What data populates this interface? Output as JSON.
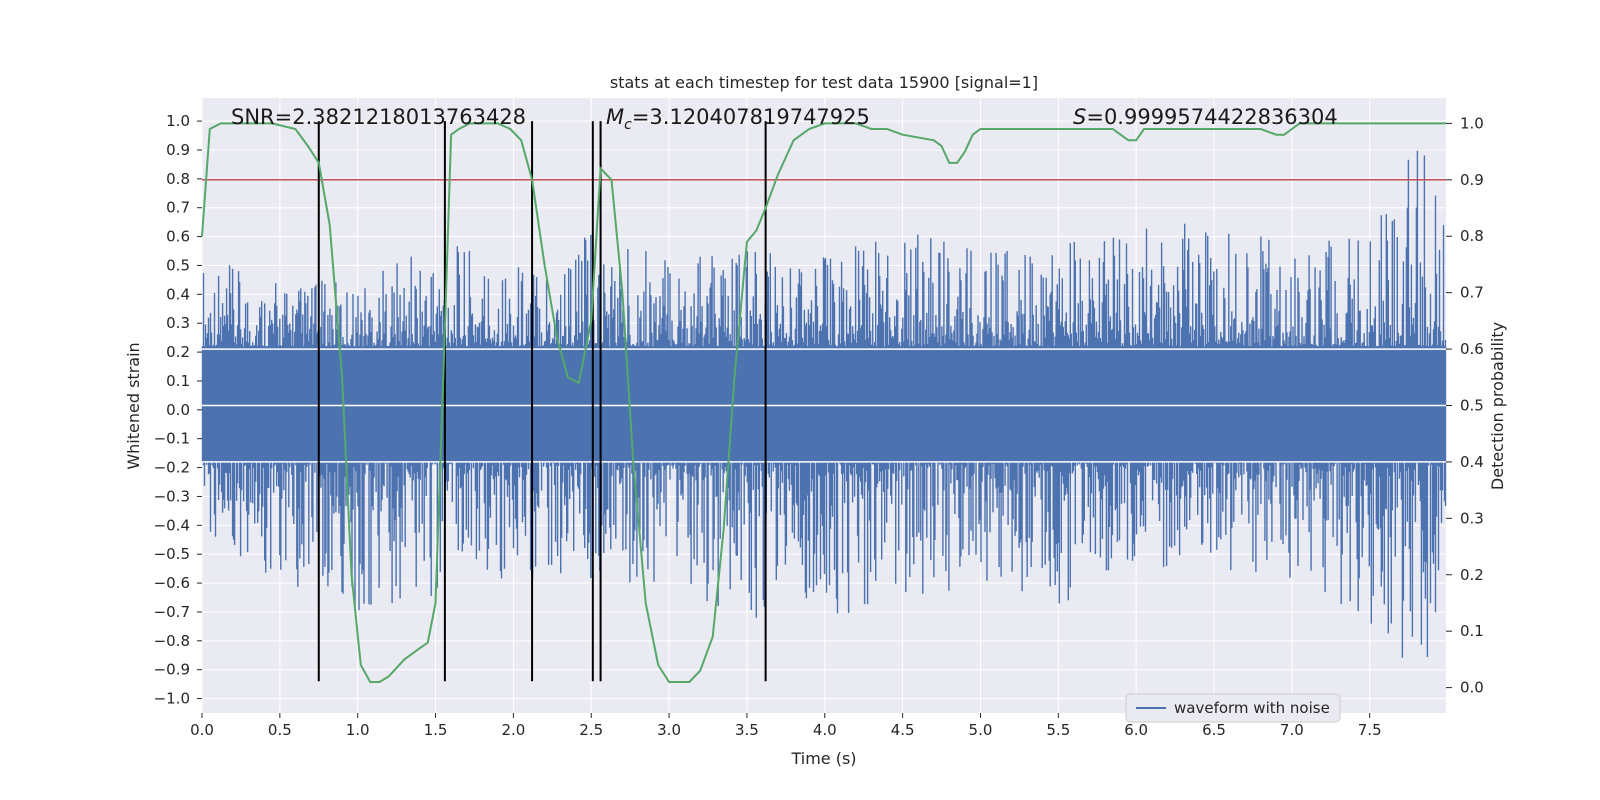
{
  "chart_data": {
    "type": "line",
    "title": "stats at each timestep for test data 15900 [signal=1]",
    "xlabel": "Time (s)",
    "ylabel": "Whitened strain",
    "ylabel_right": "Detection probability",
    "xlim": [
      0.0,
      7.99
    ],
    "ylim": [
      -1.05,
      1.08
    ],
    "ylim_right": [
      -0.045,
      1.045
    ],
    "x_ticks": [
      "0.0",
      "0.5",
      "1.0",
      "1.5",
      "2.0",
      "2.5",
      "3.0",
      "3.5",
      "4.0",
      "4.5",
      "5.0",
      "5.5",
      "6.0",
      "6.5",
      "7.0",
      "7.5"
    ],
    "y_ticks": [
      "1.0",
      "0.9",
      "0.8",
      "0.7",
      "0.6",
      "0.5",
      "0.4",
      "0.3",
      "0.2",
      "0.1",
      "0.0",
      "−0.1",
      "−0.2",
      "−0.3",
      "−0.4",
      "−0.5",
      "−0.6",
      "−0.7",
      "−0.8",
      "−0.9",
      "−1.0"
    ],
    "y_ticks_right": [
      "1.0",
      "0.9",
      "0.8",
      "0.7",
      "0.6",
      "0.5",
      "0.4",
      "0.3",
      "0.2",
      "0.1",
      "0.0"
    ],
    "annotations": {
      "snr": "SNR=2.3821218013763428",
      "mc_symbol": "M",
      "mc_sub": "c",
      "mc_value": "=3.120407819747925",
      "s_symbol": "S",
      "s_value": "=0.9999574422836304"
    },
    "threshold": {
      "axis": "right",
      "value": 0.9,
      "color": "#c44e52"
    },
    "vertical_lines_x": [
      0.75,
      1.56,
      2.12,
      2.51,
      2.56,
      3.62
    ],
    "vertical_lines_range": [
      -0.94,
      1.0
    ],
    "noise_band_right": [
      0.4,
      0.6
    ],
    "waveform_envelope": {
      "name": "waveform with noise",
      "color": "#4c72b0",
      "x": [
        0.0,
        0.5,
        1.0,
        1.5,
        2.0,
        2.5,
        3.0,
        3.5,
        4.0,
        4.5,
        5.0,
        5.5,
        6.0,
        6.5,
        7.0,
        7.5,
        7.85,
        7.99
      ],
      "ymax": [
        0.53,
        0.45,
        0.45,
        0.6,
        0.52,
        0.63,
        0.55,
        0.55,
        0.55,
        0.68,
        0.55,
        0.58,
        0.62,
        0.68,
        0.58,
        0.6,
        1.0,
        0.6
      ],
      "ymin": [
        -0.42,
        -0.6,
        -0.7,
        -0.65,
        -0.6,
        -0.62,
        -0.62,
        -0.73,
        -0.73,
        -0.65,
        -0.62,
        -0.69,
        -0.55,
        -0.55,
        -0.6,
        -0.75,
        -0.94,
        -0.55
      ]
    },
    "detection_probability": {
      "color": "#55a868",
      "x": [
        0.0,
        0.05,
        0.12,
        0.3,
        0.45,
        0.6,
        0.68,
        0.75,
        0.82,
        0.9,
        0.96,
        1.02,
        1.08,
        1.14,
        1.2,
        1.3,
        1.4,
        1.45,
        1.5,
        1.55,
        1.6,
        1.65,
        1.72,
        1.8,
        1.9,
        1.98,
        2.05,
        2.12,
        2.2,
        2.28,
        2.35,
        2.42,
        2.5,
        2.56,
        2.63,
        2.7,
        2.77,
        2.85,
        2.93,
        3.0,
        3.07,
        3.13,
        3.2,
        3.28,
        3.35,
        3.42,
        3.5,
        3.56,
        3.62,
        3.7,
        3.8,
        3.9,
        4.0,
        4.2,
        4.3,
        4.4,
        4.5,
        4.7,
        4.75,
        4.8,
        4.85,
        4.9,
        4.95,
        5.0,
        5.1,
        5.2,
        5.3,
        5.5,
        5.7,
        5.85,
        5.9,
        5.95,
        6.0,
        6.05,
        6.1,
        6.2,
        6.3,
        6.4,
        6.5,
        6.6,
        6.7,
        6.8,
        6.9,
        6.95,
        7.0,
        7.05,
        7.1,
        7.5,
        7.99
      ],
      "y": [
        0.8,
        0.99,
        1.0,
        1.0,
        1.0,
        0.99,
        0.96,
        0.93,
        0.82,
        0.55,
        0.2,
        0.04,
        0.01,
        0.01,
        0.02,
        0.05,
        0.07,
        0.08,
        0.15,
        0.55,
        0.98,
        0.99,
        1.0,
        1.0,
        1.0,
        0.99,
        0.97,
        0.9,
        0.75,
        0.62,
        0.55,
        0.54,
        0.65,
        0.92,
        0.9,
        0.7,
        0.4,
        0.15,
        0.04,
        0.01,
        0.01,
        0.01,
        0.03,
        0.09,
        0.28,
        0.55,
        0.79,
        0.81,
        0.85,
        0.91,
        0.97,
        0.99,
        1.0,
        1.0,
        0.99,
        0.99,
        0.98,
        0.97,
        0.96,
        0.93,
        0.93,
        0.95,
        0.98,
        0.99,
        0.99,
        0.99,
        0.99,
        0.99,
        0.99,
        0.99,
        0.98,
        0.97,
        0.97,
        0.99,
        0.99,
        0.99,
        0.99,
        0.99,
        0.99,
        0.99,
        0.99,
        0.99,
        0.98,
        0.98,
        0.99,
        1.0,
        1.0,
        1.0,
        1.0
      ]
    },
    "legend": {
      "position": "lower-right",
      "entries": [
        {
          "label": "waveform with noise",
          "color": "#4c72b0"
        }
      ]
    },
    "grid": true
  }
}
